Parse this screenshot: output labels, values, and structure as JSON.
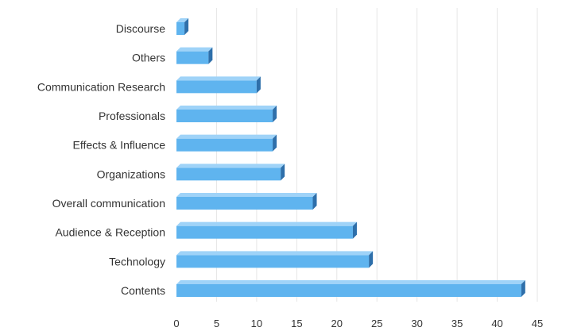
{
  "chart_data": {
    "type": "bar",
    "orientation": "horizontal",
    "categories": [
      "Discourse",
      "Others",
      "Communication Research",
      "Professionals",
      "Effects & Influence",
      "Organizations",
      "Overall communication",
      "Audience & Reception",
      "Technology",
      "Contents"
    ],
    "values": [
      1,
      4,
      10,
      12,
      12,
      13,
      17,
      22,
      24,
      43
    ],
    "xlim": [
      0,
      45
    ],
    "xticks": [
      "0",
      "5",
      "10",
      "15",
      "20",
      "25",
      "30",
      "35",
      "40",
      "45"
    ],
    "title": "",
    "xlabel": "",
    "ylabel": "",
    "grid": "vertical",
    "legend": "none",
    "bar_color": "#5fb4ef",
    "bar_top_color": "#9fd3f8",
    "bar_side_color": "#2e6faa"
  }
}
